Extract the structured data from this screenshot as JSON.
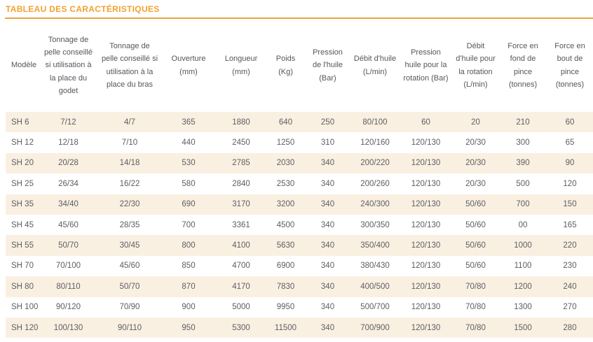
{
  "title": "TABLEAU DES CARACTÉRISTIQUES",
  "theme": {
    "accent_color": "#F2A230",
    "rule_color": "#EDA53E",
    "stripe_color": "#FAF0E1",
    "header_text_color": "#54565B",
    "cell_text_color": "#5C5E63",
    "background_color": "#FFFFFF"
  },
  "table": {
    "columns": [
      "Modèle",
      "Tonnage de pelle conseillé si utilisation à la place du godet",
      "Tonnage de pelle conseillé si utilisation à la place du bras",
      "Ouverture (mm)",
      "Longueur (mm)",
      "Poids (Kg)",
      "Pression de l'huile (Bar)",
      "Débit d'huile (L/min)",
      "Pression huile pour la rotation (Bar)",
      "Débit d'huile pour la rotation (L/min)",
      "Force en fond de pince (tonnes)",
      "Force en bout de pince (tonnes)"
    ],
    "rows": [
      [
        "SH 6",
        "7/12",
        "4/7",
        "365",
        "1880",
        "640",
        "250",
        "80/100",
        "60",
        "20",
        "210",
        "60"
      ],
      [
        "SH 12",
        "12/18",
        "7/10",
        "440",
        "2450",
        "1250",
        "310",
        "120/160",
        "120/130",
        "20/30",
        "300",
        "65"
      ],
      [
        "SH 20",
        "20/28",
        "14/18",
        "530",
        "2785",
        "2030",
        "340",
        "200/220",
        "120/130",
        "20/30",
        "390",
        "90"
      ],
      [
        "SH 25",
        "26/34",
        "16/22",
        "580",
        "2840",
        "2530",
        "340",
        "200/260",
        "120/130",
        "20/30",
        "500",
        "120"
      ],
      [
        "SH 35",
        "34/40",
        "22/30",
        "690",
        "3170",
        "3200",
        "340",
        "240/300",
        "120/130",
        "50/60",
        "700",
        "150"
      ],
      [
        "SH 45",
        "45/60",
        "28/35",
        "700",
        "3361",
        "4500",
        "340",
        "300/350",
        "120/130",
        "50/60",
        "00",
        "165"
      ],
      [
        "SH 55",
        "50/70",
        "30/45",
        "800",
        "4100",
        "5630",
        "340",
        "350/400",
        "120/130",
        "50/60",
        "1000",
        "220"
      ],
      [
        "SH 70",
        "70/100",
        "45/60",
        "850",
        "4700",
        "6900",
        "340",
        "380/430",
        "120/130",
        "50/60",
        "1100",
        "230"
      ],
      [
        "SH 80",
        "80/110",
        "50/70",
        "870",
        "4170",
        "7830",
        "340",
        "400/500",
        "120/130",
        "70/80",
        "1200",
        "240"
      ],
      [
        "SH 100",
        "90/120",
        "70/90",
        "900",
        "5000",
        "9950",
        "340",
        "500/700",
        "120/130",
        "70/80",
        "1300",
        "270"
      ],
      [
        "SH 120",
        "100/130",
        "90/110",
        "950",
        "5300",
        "11500",
        "340",
        "700/900",
        "120/130",
        "70/80",
        "1500",
        "280"
      ]
    ]
  }
}
